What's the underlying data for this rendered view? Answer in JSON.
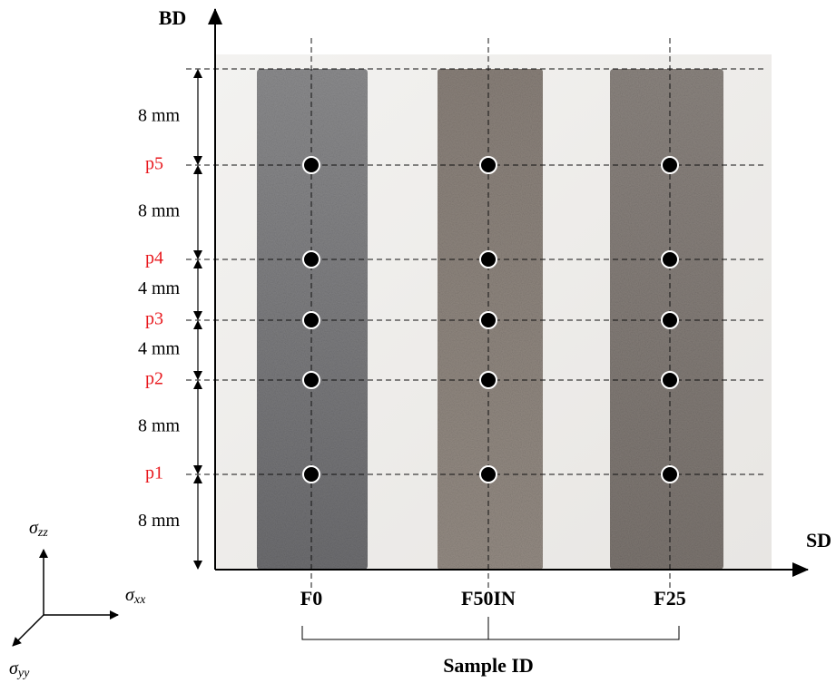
{
  "axes": {
    "vertical": "BD",
    "horizontal": "SD"
  },
  "positions": [
    "p5",
    "p4",
    "p3",
    "p2",
    "p1"
  ],
  "spacings": [
    "8 mm",
    "8 mm",
    "4 mm",
    "4 mm",
    "8 mm",
    "8 mm"
  ],
  "samples": [
    "F0",
    "F50IN",
    "F25"
  ],
  "samples_label": "Sample ID",
  "stress_axes": [
    {
      "symbol": "σ",
      "subscript": "zz"
    },
    {
      "symbol": "σ",
      "subscript": "xx"
    },
    {
      "symbol": "σ",
      "subscript": "yy"
    }
  ]
}
